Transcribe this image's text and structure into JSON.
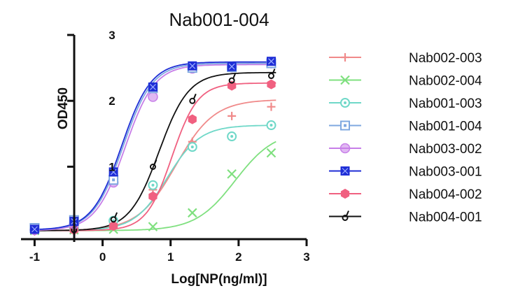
{
  "chart_data": {
    "type": "line",
    "title": "Nab001-004",
    "xlabel": "Log[NP(ng/ml)]",
    "ylabel": "OD450",
    "xlim": [
      -1.2,
      3
    ],
    "ylim": [
      -0.1,
      3
    ],
    "xticks": [
      "-1",
      "0",
      "1",
      "2",
      "3"
    ],
    "yticks": [
      "1",
      "2",
      "3"
    ],
    "legend_position": "right",
    "grid": false,
    "x": [
      -1.0,
      -0.42,
      0.16,
      0.74,
      1.32,
      1.9,
      2.48
    ],
    "series": [
      {
        "name": "Nab002-003",
        "color": "#f08a8a",
        "marker": "plus",
        "values": [
          0.04,
          0.05,
          0.12,
          0.65,
          1.38,
          1.77,
          1.91
        ],
        "curve": {
          "bottom": 0.03,
          "top": 2.02,
          "ec50": 1.08,
          "hill": 1.55
        }
      },
      {
        "name": "Nab002-004",
        "color": "#7fe07f",
        "marker": "x",
        "values": [
          0.03,
          0.04,
          0.05,
          0.09,
          0.3,
          0.89,
          1.21
        ],
        "curve": {
          "bottom": 0.03,
          "top": 1.55,
          "ec50": 1.95,
          "hill": 1.5
        }
      },
      {
        "name": "Nab001-003",
        "color": "#6fd8c8",
        "marker": "circle-dot",
        "values": [
          0.05,
          0.06,
          0.18,
          0.72,
          1.3,
          1.46,
          1.63
        ],
        "curve": {
          "bottom": 0.03,
          "top": 1.63,
          "ec50": 0.95,
          "hill": 1.8
        }
      },
      {
        "name": "Nab001-004",
        "color": "#7fa8e0",
        "marker": "square-dot",
        "values": [
          0.07,
          0.19,
          0.8,
          2.19,
          2.5,
          2.51,
          2.57
        ],
        "curve": {
          "bottom": 0.04,
          "top": 2.57,
          "ec50": 0.3,
          "hill": 2.0
        }
      },
      {
        "name": "Nab003-002",
        "color": "#c77ee8",
        "marker": "circle",
        "values": [
          0.04,
          0.13,
          0.76,
          2.06,
          2.49,
          2.51,
          2.57
        ],
        "curve": {
          "bottom": 0.03,
          "top": 2.55,
          "ec50": 0.33,
          "hill": 2.0
        }
      },
      {
        "name": "Nab003-001",
        "color": "#1f2ed6",
        "marker": "square-x",
        "values": [
          0.05,
          0.17,
          0.92,
          2.21,
          2.53,
          2.52,
          2.6
        ],
        "curve": {
          "bottom": 0.04,
          "top": 2.59,
          "ec50": 0.28,
          "hill": 2.0
        }
      },
      {
        "name": "Nab004-002",
        "color": "#f06080",
        "marker": "hexagon",
        "values": [
          0.03,
          0.04,
          0.1,
          0.55,
          1.72,
          2.23,
          2.25
        ],
        "curve": {
          "bottom": 0.03,
          "top": 2.27,
          "ec50": 1.02,
          "hill": 2.3
        }
      },
      {
        "name": "Nab004-001",
        "color": "#111111",
        "marker": "hook",
        "values": [
          0.03,
          0.06,
          0.22,
          1.02,
          2.02,
          2.33,
          2.4
        ],
        "curve": {
          "bottom": 0.03,
          "top": 2.43,
          "ec50": 0.83,
          "hill": 2.0
        }
      }
    ]
  }
}
